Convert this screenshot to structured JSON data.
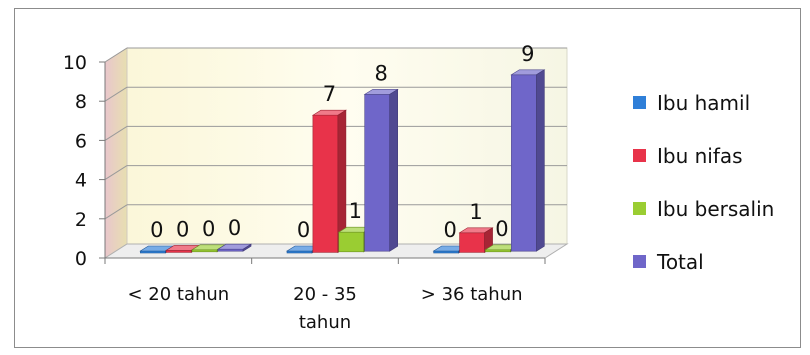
{
  "chart_data": {
    "type": "bar",
    "title": "",
    "xlabel": "",
    "ylabel": "",
    "ylim": [
      0,
      10
    ],
    "yticks": [
      0,
      2,
      4,
      6,
      8,
      10
    ],
    "grid": true,
    "legend_position": "right",
    "categories": [
      [
        "< 20 tahun"
      ],
      [
        "20 - 35",
        "tahun"
      ],
      [
        "> 36 tahun"
      ]
    ],
    "series": [
      {
        "name": "Ibu hamil",
        "values": [
          0,
          0,
          0
        ],
        "color": "#2f7fd8"
      },
      {
        "name": "Ibu nifas",
        "values": [
          0,
          7,
          1
        ],
        "color": "#e8334a"
      },
      {
        "name": "Ibu bersalin",
        "values": [
          0,
          1,
          0
        ],
        "color": "#9acd32"
      },
      {
        "name": "Total",
        "values": [
          0,
          8,
          9
        ],
        "color": "#6f66c9"
      }
    ]
  }
}
